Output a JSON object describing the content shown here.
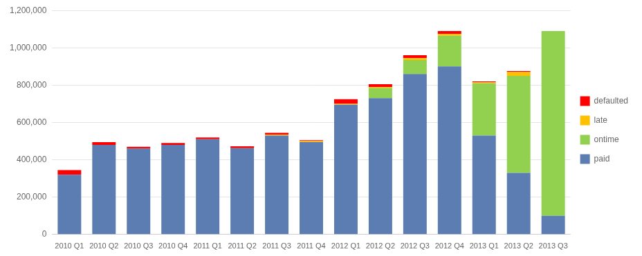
{
  "chart_data": {
    "type": "bar",
    "stacked": true,
    "categories": [
      "2010 Q1",
      "2010 Q2",
      "2010 Q3",
      "2010 Q4",
      "2011 Q1",
      "2011 Q2",
      "2011 Q3",
      "2011 Q4",
      "2012 Q1",
      "2012 Q2",
      "2012 Q3",
      "2012 Q4",
      "2013 Q1",
      "2013 Q2",
      "2013 Q3"
    ],
    "series": [
      {
        "name": "paid",
        "color": "#5B7DB1",
        "values": [
          320000,
          480000,
          460000,
          480000,
          510000,
          462000,
          530000,
          495000,
          695000,
          730000,
          860000,
          900000,
          530000,
          330000,
          100000
        ]
      },
      {
        "name": "ontime",
        "color": "#92D050",
        "values": [
          0,
          0,
          0,
          0,
          0,
          0,
          0,
          0,
          0,
          55000,
          75000,
          165000,
          280000,
          520000,
          990000
        ]
      },
      {
        "name": "late",
        "color": "#FFC000",
        "values": [
          0,
          0,
          0,
          0,
          0,
          0,
          5000,
          5000,
          5000,
          5000,
          10000,
          10000,
          5000,
          20000,
          0
        ]
      },
      {
        "name": "defaulted",
        "color": "#FF0000",
        "values": [
          25000,
          15000,
          10000,
          10000,
          10000,
          10000,
          10000,
          5000,
          25000,
          15000,
          15000,
          15000,
          5000,
          5000,
          0
        ]
      }
    ],
    "ylim": [
      0,
      1200000
    ],
    "yticks": [
      0,
      {
        "value": 200000,
        "label": "200,000"
      },
      {
        "value": 400000,
        "label": "400,000"
      },
      {
        "value": 600000,
        "label": "600,000"
      },
      {
        "value": 800000,
        "label": "800,000"
      },
      {
        "value": 1000000,
        "label": "1,000,000"
      },
      {
        "value": 1200000,
        "label": "1,200,000"
      }
    ],
    "grid": true,
    "legend": "right"
  }
}
